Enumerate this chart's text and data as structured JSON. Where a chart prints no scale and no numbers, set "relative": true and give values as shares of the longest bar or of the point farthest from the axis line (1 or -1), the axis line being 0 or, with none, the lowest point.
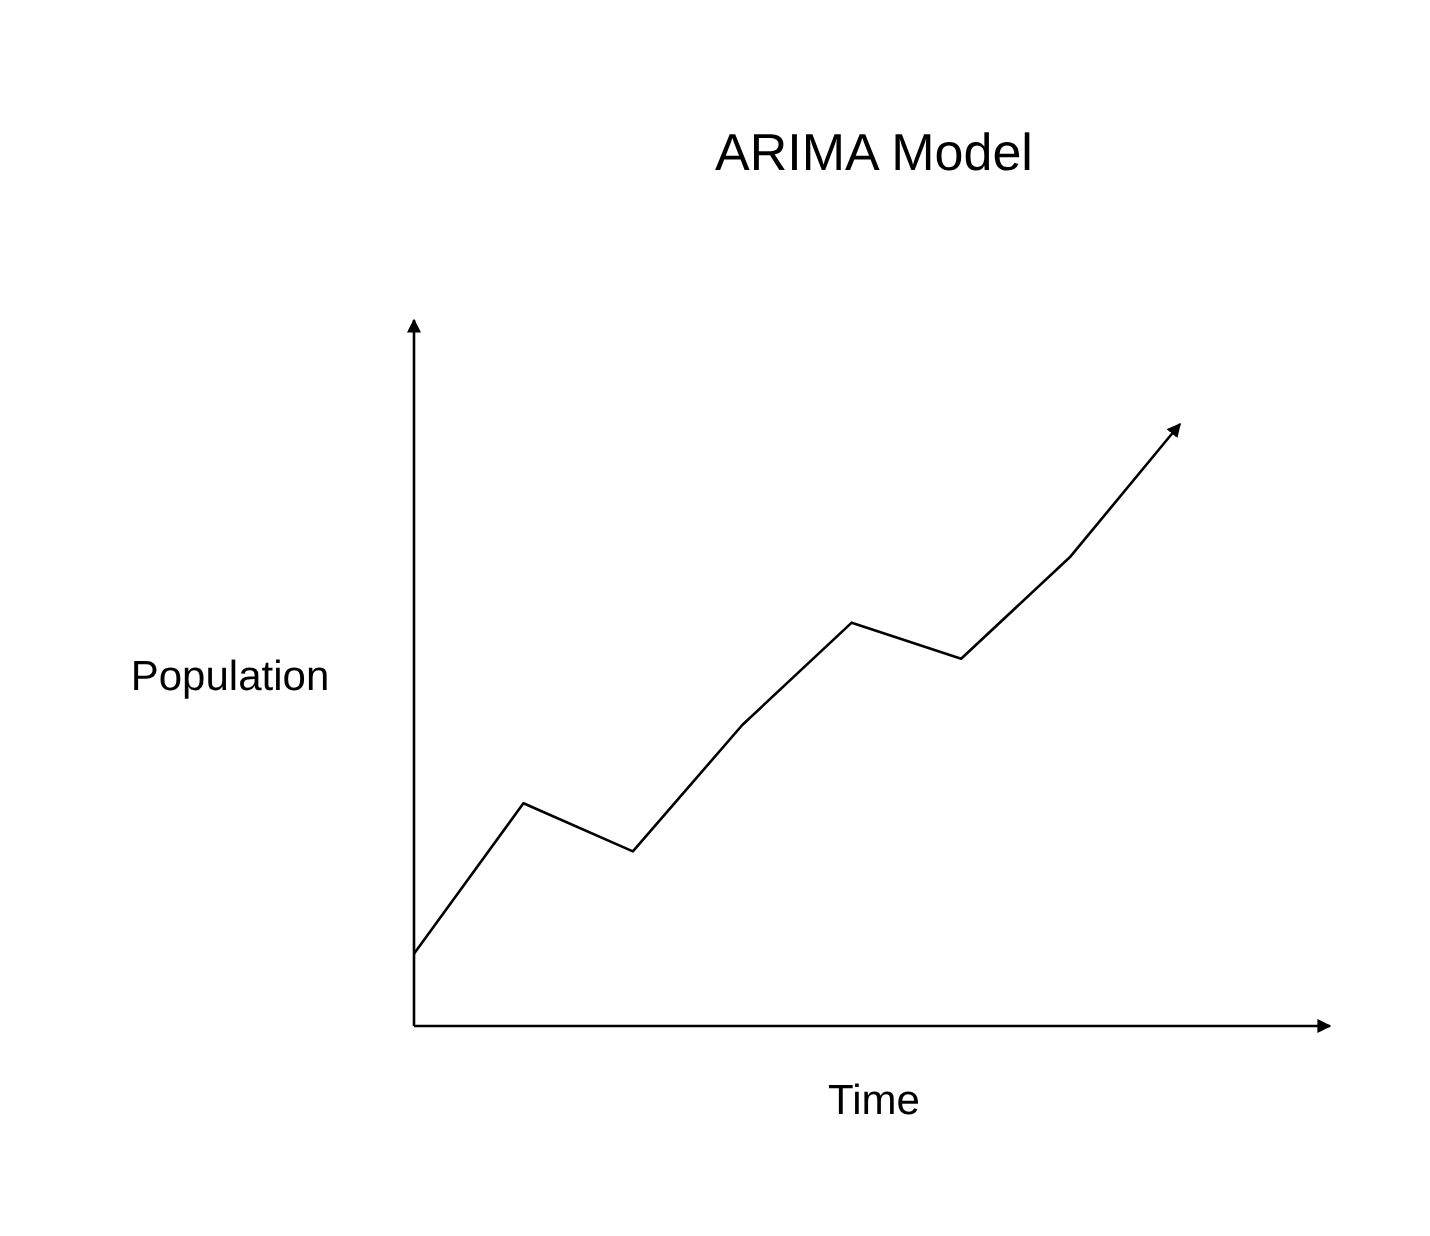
{
  "chart_data": {
    "type": "line",
    "title": "ARIMA Model",
    "xlabel": "Time",
    "ylabel": "Population",
    "relative": true,
    "categories": [
      null,
      null,
      null,
      null,
      null,
      null,
      null,
      null
    ],
    "series": [
      {
        "color": "#000000",
        "values": [
          0.12,
          0.37,
          0.29,
          0.5,
          0.67,
          0.61,
          0.78,
          1
        ]
      }
    ],
    "marker": "none",
    "line_style": "solid",
    "grid": false
  }
}
